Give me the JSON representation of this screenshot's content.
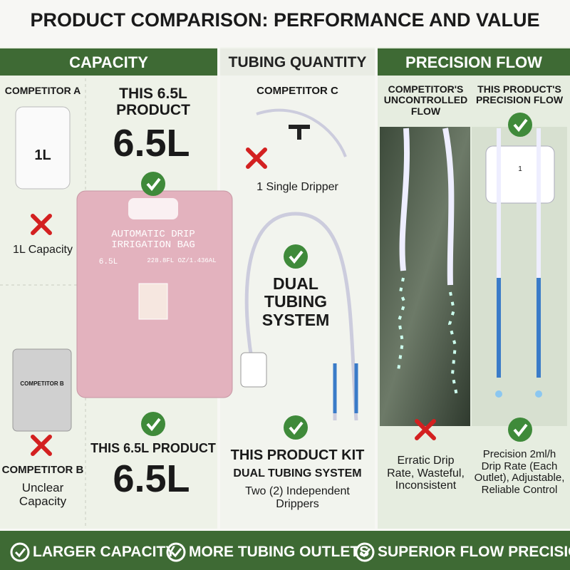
{
  "header": {
    "title": "PRODUCT COMPARISON: PERFORMANCE AND VALUE"
  },
  "capacity": {
    "title": "CAPACITY",
    "competitor_a": {
      "name": "COMPETITOR A",
      "bag_label": "1L",
      "caption": "1L Capacity"
    },
    "product_top": {
      "name": "THIS 6.5L PRODUCT",
      "amount": "6.5L"
    },
    "bag": {
      "title": "AUTOMATIC DRIP IRRIGATION BAG",
      "size": "6.5L",
      "volume": "228.8FL OZ/1.436AL"
    },
    "competitor_b": {
      "name": "COMPETITOR B",
      "package_label": "COMPETITOR B",
      "caption": "Unclear Capacity"
    },
    "product_bottom": {
      "name": "THIS 6.5L PRODUCT",
      "amount": "6.5L"
    }
  },
  "tubing": {
    "title": "TUBING QUANTITY",
    "competitor_c": {
      "name": "COMPETITOR C",
      "caption": "1 Single Dripper"
    },
    "feature": "DUAL TUBING SYSTEM",
    "product": {
      "name": "THIS PRODUCT KIT",
      "subtitle": "DUAL TUBING SYSTEM",
      "caption": "Two (2) Independent Drippers"
    }
  },
  "precision": {
    "title": "PRECISION FLOW",
    "competitor": {
      "heading": "COMPETITOR'S UNCONTROLLED FLOW",
      "caption": "Erratic Drip Rate, Wasteful, Inconsistent"
    },
    "product": {
      "heading": "THIS PRODUCT'S PRECISION FLOW",
      "dial_label": "1",
      "caption": "Precision 2ml/h Drip Rate (Each Outlet), Adjustable, Reliable Control"
    }
  },
  "footer": {
    "items": [
      "LARGER CAPACITY",
      "MORE TUBING OUTLETS",
      "SUPERIOR FLOW PRECISION"
    ]
  }
}
